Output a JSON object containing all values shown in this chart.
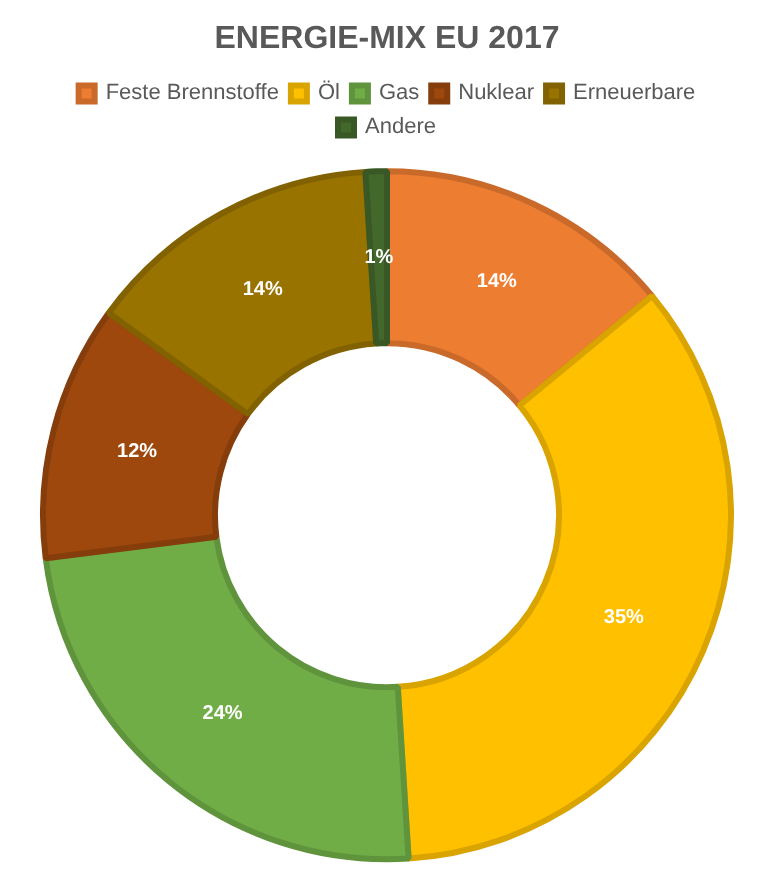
{
  "chart_data": {
    "type": "donut",
    "title": "ENERGIE-MIX EU 2017",
    "categories": [
      "Feste Brennstoffe",
      "Öl",
      "Gas",
      "Nuklear",
      "Erneuerbare",
      "Andere"
    ],
    "values": [
      14,
      35,
      24,
      12,
      14,
      1
    ],
    "value_labels": [
      "14%",
      "35%",
      "24%",
      "12%",
      "14%",
      "1%"
    ],
    "colors": [
      "#ed7d31",
      "#ffc000",
      "#70ad47",
      "#9e480e",
      "#997300",
      "#43682b"
    ],
    "legend": "top"
  }
}
